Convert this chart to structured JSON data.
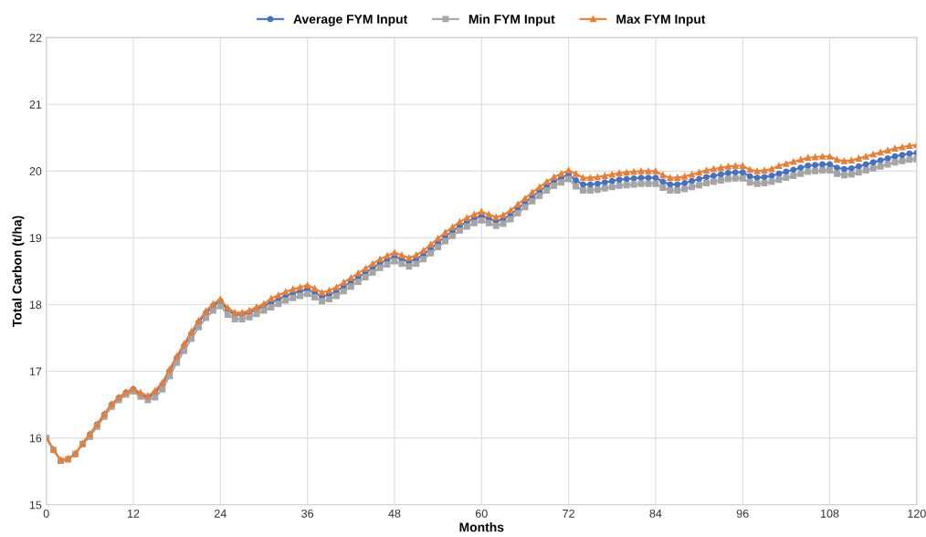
{
  "chart_data": {
    "type": "line",
    "xlabel": "Months",
    "ylabel": "Total Carbon (t/ha)",
    "x": [
      0,
      1,
      2,
      3,
      4,
      5,
      6,
      7,
      8,
      9,
      10,
      11,
      12,
      13,
      14,
      15,
      16,
      17,
      18,
      19,
      20,
      21,
      22,
      23,
      24,
      25,
      26,
      27,
      28,
      29,
      30,
      31,
      32,
      33,
      34,
      35,
      36,
      37,
      38,
      39,
      40,
      41,
      42,
      43,
      44,
      45,
      46,
      47,
      48,
      49,
      50,
      51,
      52,
      53,
      54,
      55,
      56,
      57,
      58,
      59,
      60,
      61,
      62,
      63,
      64,
      65,
      66,
      67,
      68,
      69,
      70,
      71,
      72,
      73,
      74,
      75,
      76,
      77,
      78,
      79,
      80,
      81,
      82,
      83,
      84,
      85,
      86,
      87,
      88,
      89,
      90,
      91,
      92,
      93,
      94,
      95,
      96,
      97,
      98,
      99,
      100,
      101,
      102,
      103,
      104,
      105,
      106,
      107,
      108,
      109,
      110,
      111,
      112,
      113,
      114,
      115,
      116,
      117,
      118,
      119,
      120
    ],
    "series": [
      {
        "name": "Average FYM Input",
        "color": "#4472c4",
        "marker": "circle",
        "values": [
          16.0,
          15.82,
          15.66,
          15.68,
          15.76,
          15.91,
          16.05,
          16.2,
          16.35,
          16.5,
          16.6,
          16.68,
          16.73,
          16.65,
          16.6,
          16.68,
          16.8,
          17.0,
          17.2,
          17.38,
          17.56,
          17.73,
          17.87,
          17.98,
          18.05,
          17.92,
          17.85,
          17.85,
          17.88,
          17.93,
          17.98,
          18.03,
          18.08,
          18.13,
          18.17,
          18.2,
          18.23,
          18.18,
          18.12,
          18.15,
          18.2,
          18.27,
          18.34,
          18.41,
          18.48,
          18.55,
          18.62,
          18.67,
          18.72,
          18.68,
          18.64,
          18.68,
          18.75,
          18.84,
          18.93,
          19.02,
          19.1,
          19.18,
          19.24,
          19.29,
          19.33,
          19.29,
          19.25,
          19.28,
          19.35,
          19.44,
          19.53,
          19.62,
          19.7,
          19.78,
          19.85,
          19.9,
          19.95,
          19.86,
          19.8,
          19.8,
          19.81,
          19.83,
          19.85,
          19.87,
          19.88,
          19.89,
          19.9,
          19.9,
          19.9,
          19.84,
          19.8,
          19.8,
          19.82,
          19.85,
          19.88,
          19.91,
          19.93,
          19.95,
          19.97,
          19.98,
          19.98,
          19.92,
          19.9,
          19.91,
          19.93,
          19.96,
          19.99,
          20.02,
          20.05,
          20.08,
          20.09,
          20.1,
          20.1,
          20.05,
          20.03,
          20.04,
          20.07,
          20.1,
          20.13,
          20.16,
          20.19,
          20.22,
          20.24,
          20.26,
          20.27
        ]
      },
      {
        "name": "Min FYM Input",
        "color": "#a5a5a5",
        "marker": "square",
        "values": [
          16.0,
          15.82,
          15.66,
          15.68,
          15.76,
          15.91,
          16.02,
          16.17,
          16.32,
          16.47,
          16.57,
          16.65,
          16.7,
          16.62,
          16.57,
          16.61,
          16.73,
          16.93,
          17.13,
          17.31,
          17.49,
          17.66,
          17.8,
          17.91,
          17.98,
          17.85,
          17.78,
          17.78,
          17.81,
          17.86,
          17.91,
          17.96,
          18.01,
          18.06,
          18.1,
          18.13,
          18.16,
          18.11,
          18.05,
          18.08,
          18.13,
          18.2,
          18.27,
          18.34,
          18.41,
          18.48,
          18.55,
          18.6,
          18.65,
          18.61,
          18.57,
          18.61,
          18.68,
          18.77,
          18.86,
          18.95,
          19.03,
          19.11,
          19.17,
          19.22,
          19.26,
          19.22,
          19.18,
          19.21,
          19.28,
          19.37,
          19.46,
          19.55,
          19.63,
          19.71,
          19.78,
          19.83,
          19.88,
          19.77,
          19.71,
          19.71,
          19.72,
          19.74,
          19.76,
          19.78,
          19.79,
          19.8,
          19.81,
          19.81,
          19.81,
          19.75,
          19.71,
          19.71,
          19.73,
          19.76,
          19.79,
          19.82,
          19.84,
          19.86,
          19.88,
          19.89,
          19.89,
          19.83,
          19.81,
          19.82,
          19.84,
          19.87,
          19.9,
          19.93,
          19.96,
          19.99,
          20.0,
          20.01,
          20.01,
          19.96,
          19.94,
          19.95,
          19.98,
          20.01,
          20.04,
          20.07,
          20.1,
          20.13,
          20.15,
          20.17,
          20.18
        ]
      },
      {
        "name": "Max FYM Input",
        "color": "#ed7d31",
        "marker": "triangle",
        "values": [
          16.0,
          15.83,
          15.67,
          15.69,
          15.77,
          15.92,
          16.06,
          16.21,
          16.36,
          16.51,
          16.61,
          16.69,
          16.74,
          16.68,
          16.63,
          16.71,
          16.83,
          17.03,
          17.23,
          17.41,
          17.59,
          17.76,
          17.9,
          18.01,
          18.08,
          17.95,
          17.88,
          17.88,
          17.91,
          17.96,
          18.01,
          18.09,
          18.14,
          18.19,
          18.23,
          18.26,
          18.29,
          18.24,
          18.18,
          18.21,
          18.26,
          18.33,
          18.4,
          18.47,
          18.54,
          18.61,
          18.68,
          18.73,
          18.78,
          18.74,
          18.7,
          18.74,
          18.81,
          18.9,
          18.99,
          19.08,
          19.16,
          19.24,
          19.3,
          19.35,
          19.39,
          19.35,
          19.31,
          19.34,
          19.41,
          19.5,
          19.59,
          19.68,
          19.76,
          19.84,
          19.91,
          19.96,
          20.01,
          19.96,
          19.9,
          19.9,
          19.91,
          19.93,
          19.95,
          19.97,
          19.98,
          19.99,
          20.0,
          20.0,
          20.0,
          19.94,
          19.9,
          19.9,
          19.92,
          19.95,
          19.98,
          20.01,
          20.03,
          20.05,
          20.07,
          20.08,
          20.08,
          20.02,
          20.0,
          20.01,
          20.03,
          20.08,
          20.11,
          20.14,
          20.17,
          20.2,
          20.21,
          20.22,
          20.22,
          20.17,
          20.15,
          20.16,
          20.19,
          20.22,
          20.25,
          20.28,
          20.31,
          20.34,
          20.36,
          20.38,
          20.39
        ]
      }
    ],
    "xlim": [
      0,
      120
    ],
    "xticks": [
      0,
      12,
      24,
      36,
      48,
      60,
      72,
      84,
      96,
      108,
      120
    ],
    "ylim": [
      15,
      22
    ],
    "yticks": [
      15,
      16,
      17,
      18,
      19,
      20,
      21,
      22
    ],
    "grid": true,
    "legend": "top",
    "line_style": "solid"
  }
}
